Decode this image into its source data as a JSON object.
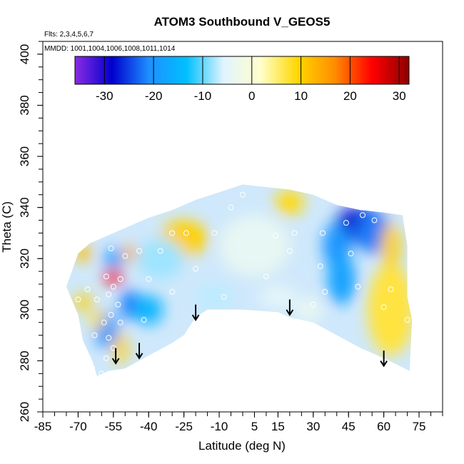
{
  "chart_data": {
    "type": "heatmap",
    "title": "ATOM3 Southbound V_GEOS5",
    "subtitle_flights": "Flts: 2,3,4,5,6,7",
    "subtitle_dates": "MMDD: 1001,1004,1006,1008,1011,1014",
    "xlabel": "Latitude (deg N)",
    "ylabel": "Theta (C)",
    "xlim": [
      -85,
      85
    ],
    "ylim": [
      260,
      405
    ],
    "x_ticks": [
      -85,
      -70,
      -55,
      -40,
      -25,
      -10,
      5,
      15,
      30,
      45,
      60,
      75
    ],
    "y_ticks": [
      260,
      280,
      300,
      320,
      340,
      360,
      380,
      400
    ],
    "colorbar": {
      "range": [
        -36,
        32
      ],
      "ticks": [
        -30,
        -20,
        -10,
        0,
        10,
        20,
        30
      ],
      "colors": [
        "#8a2be2",
        "#0000cd",
        "#1e90ff",
        "#00bfff",
        "#e0f4ff",
        "#ffffcc",
        "#ffd700",
        "#ff8c00",
        "#ff0000",
        "#8b0000"
      ]
    },
    "outline": {
      "top": [
        [
          -75,
          309
        ],
        [
          -70,
          322
        ],
        [
          -65,
          326
        ],
        [
          -60,
          328
        ],
        [
          -50,
          332
        ],
        [
          -40,
          336
        ],
        [
          -30,
          339
        ],
        [
          -20,
          343
        ],
        [
          -10,
          346
        ],
        [
          0,
          349
        ],
        [
          10,
          348
        ],
        [
          20,
          347
        ],
        [
          30,
          345
        ],
        [
          40,
          341
        ],
        [
          50,
          339
        ],
        [
          60,
          338
        ],
        [
          68,
          337
        ],
        [
          70,
          325
        ],
        [
          70,
          305
        ],
        [
          72,
          296
        ],
        [
          71,
          276
        ]
      ],
      "bottom": [
        [
          -75,
          309
        ],
        [
          -70,
          298
        ],
        [
          -68,
          288
        ],
        [
          -64,
          280
        ],
        [
          -62,
          274
        ],
        [
          -57,
          276
        ],
        [
          -50,
          277
        ],
        [
          -40,
          282
        ],
        [
          -30,
          287
        ],
        [
          -25,
          290
        ],
        [
          -20,
          297
        ],
        [
          -15,
          300
        ],
        [
          0,
          300
        ],
        [
          15,
          299
        ],
        [
          20,
          297
        ],
        [
          30,
          295
        ],
        [
          40,
          290
        ],
        [
          50,
          285
        ],
        [
          60,
          281
        ],
        [
          71,
          276
        ]
      ]
    },
    "blobs": [
      {
        "x": 50,
        "y": 333,
        "v": -29,
        "rx": 11,
        "ry": 7
      },
      {
        "x": 56,
        "y": 330,
        "v": -22,
        "rx": 8,
        "ry": 8
      },
      {
        "x": 40,
        "y": 325,
        "v": -20,
        "rx": 6,
        "ry": 9
      },
      {
        "x": 42,
        "y": 312,
        "v": -18,
        "rx": 6,
        "ry": 10
      },
      {
        "x": 63,
        "y": 300,
        "v": 7,
        "rx": 10,
        "ry": 18
      },
      {
        "x": 63,
        "y": 325,
        "v": 10,
        "rx": 4,
        "ry": 9
      },
      {
        "x": -23,
        "y": 330,
        "v": 22,
        "rx": 5,
        "ry": 4
      },
      {
        "x": -25,
        "y": 328,
        "v": 10,
        "rx": 10,
        "ry": 7
      },
      {
        "x": 20,
        "y": 342,
        "v": 9,
        "rx": 6,
        "ry": 5
      },
      {
        "x": -55,
        "y": 313,
        "v": 25,
        "rx": 4,
        "ry": 3
      },
      {
        "x": -48,
        "y": 322,
        "v": 14,
        "rx": 3,
        "ry": 3
      },
      {
        "x": -68,
        "y": 322,
        "v": 12,
        "rx": 4,
        "ry": 3
      },
      {
        "x": -48,
        "y": 302,
        "v": -22,
        "rx": 4,
        "ry": 6
      },
      {
        "x": -55,
        "y": 320,
        "v": -18,
        "rx": 4,
        "ry": 4
      },
      {
        "x": -58,
        "y": 292,
        "v": -20,
        "rx": 5,
        "ry": 7
      },
      {
        "x": -52,
        "y": 285,
        "v": 10,
        "rx": 3,
        "ry": 6
      },
      {
        "x": -68,
        "y": 303,
        "v": 10,
        "rx": 4,
        "ry": 3
      },
      {
        "x": -40,
        "y": 300,
        "v": -15,
        "rx": 6,
        "ry": 6
      },
      {
        "x": -35,
        "y": 320,
        "v": -8,
        "rx": 10,
        "ry": 8
      },
      {
        "x": 5,
        "y": 325,
        "v": -4,
        "rx": 15,
        "ry": 12
      },
      {
        "x": -12,
        "y": 305,
        "v": -7,
        "rx": 8,
        "ry": 5
      },
      {
        "x": 15,
        "y": 305,
        "v": -5,
        "rx": 8,
        "ry": 5
      },
      {
        "x": 28,
        "y": 300,
        "v": -4,
        "rx": 6,
        "ry": 5
      },
      {
        "x": -62,
        "y": 296,
        "v": 8,
        "rx": 3,
        "ry": 4
      }
    ],
    "points": [
      [
        -56,
        324
      ],
      [
        -50,
        321
      ],
      [
        -44,
        323
      ],
      [
        -58,
        313
      ],
      [
        -52,
        312
      ],
      [
        -55,
        309
      ],
      [
        -57,
        306
      ],
      [
        -62,
        304
      ],
      [
        -66,
        308
      ],
      [
        -53,
        302
      ],
      [
        -56,
        298
      ],
      [
        -52,
        295
      ],
      [
        -59,
        295
      ],
      [
        -63,
        290
      ],
      [
        -57,
        289
      ],
      [
        -55,
        285
      ],
      [
        -58,
        281
      ],
      [
        -64,
        277
      ],
      [
        -40,
        312
      ],
      [
        -42,
        296
      ],
      [
        -30,
        307
      ],
      [
        -35,
        323
      ],
      [
        -20,
        316
      ],
      [
        -12,
        330
      ],
      [
        -5,
        340
      ],
      [
        0,
        345
      ],
      [
        -8,
        305
      ],
      [
        10,
        313
      ],
      [
        14,
        329
      ],
      [
        20,
        323
      ],
      [
        22,
        330
      ],
      [
        34,
        330
      ],
      [
        33,
        317
      ],
      [
        35,
        307
      ],
      [
        30,
        302
      ],
      [
        34,
        290
      ],
      [
        44,
        334
      ],
      [
        46,
        322
      ],
      [
        49,
        309
      ],
      [
        51,
        337
      ],
      [
        56,
        335
      ],
      [
        63,
        308
      ],
      [
        60,
        301
      ],
      [
        70,
        296
      ],
      [
        -30,
        330
      ],
      [
        -18,
        296
      ],
      [
        -60,
        275
      ],
      [
        -24,
        330
      ],
      [
        -70,
        304
      ]
    ],
    "arrows": [
      [
        -54,
        285
      ],
      [
        -44,
        287
      ],
      [
        -20,
        302
      ],
      [
        20,
        304
      ],
      [
        60,
        284
      ]
    ],
    "arrow_len": 6
  }
}
